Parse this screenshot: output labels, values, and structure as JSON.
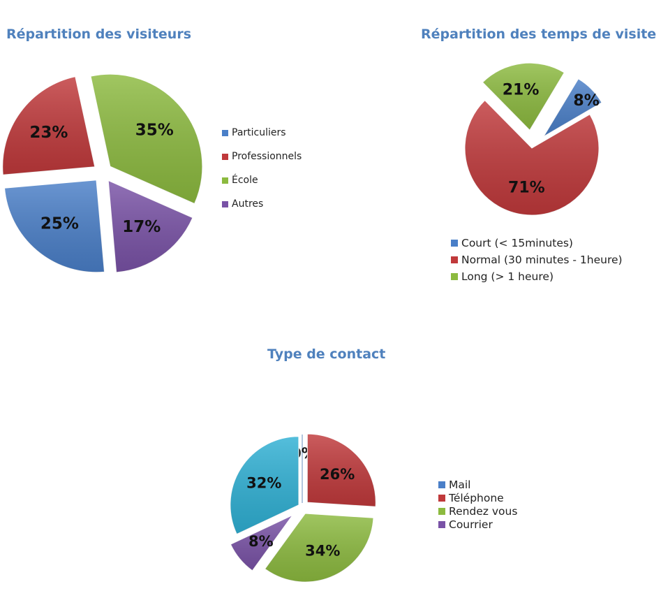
{
  "chart_data": [
    {
      "type": "pie",
      "title": "Répartition des visiteurs",
      "categories": [
        "Particuliers",
        "Professionnels",
        "École",
        "Autres"
      ],
      "values": [
        25,
        23,
        35,
        17
      ],
      "labels": [
        "25%",
        "23%",
        "35%",
        "17%"
      ],
      "colors": [
        "#4a7fc8",
        "#c0393b",
        "#8cba3f",
        "#7952a6"
      ],
      "legend": "right",
      "exploded": true
    },
    {
      "type": "pie",
      "title": "Répartition des temps de visite",
      "categories": [
        "Court (< 15minutes)",
        "Normal (30 minutes - 1heure)",
        "Long (> 1 heure)"
      ],
      "values": [
        8,
        71,
        21
      ],
      "labels": [
        "8%",
        "71%",
        "21%"
      ],
      "colors": [
        "#4a7fc8",
        "#c0393b",
        "#8cba3f"
      ],
      "legend": "bottom",
      "exploded": true
    },
    {
      "type": "pie",
      "title": "Type de contact",
      "categories": [
        "Mail",
        "Téléphone",
        "Rendez vous",
        "Courrier",
        ""
      ],
      "values": [
        0,
        26,
        34,
        8,
        32
      ],
      "labels": [
        "0%",
        "26%",
        "34%",
        "8%",
        "32%"
      ],
      "colors": [
        "#4a7fc8",
        "#c0393b",
        "#8cba3f",
        "#7952a6",
        "#2fb0d4"
      ],
      "legend": "right",
      "exploded": true
    }
  ]
}
